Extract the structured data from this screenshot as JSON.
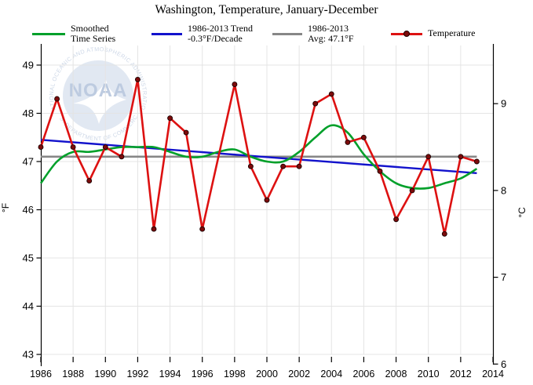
{
  "title": "Washington, Temperature, January-December",
  "legend": [
    {
      "id": "smoothed",
      "label": "Smoothed\nTime Series",
      "color": "#00a02a",
      "marker": false
    },
    {
      "id": "trend",
      "label": "1986-2013 Trend\n-0.3°F/Decade",
      "color": "#1212cc",
      "marker": false
    },
    {
      "id": "avg",
      "label": "1986-2013\nAvg: 47.1°F",
      "color": "#878787",
      "marker": false
    },
    {
      "id": "temperature",
      "label": "Temperature",
      "color": "#dd1111",
      "marker": true
    }
  ],
  "logo": {
    "name": "NOAA",
    "arc_top": "NATIONAL OCEANIC AND ATMOSPHERIC ADMINISTRATION",
    "arc_bottom": "U.S. DEPARTMENT OF COMMERCE"
  },
  "chart_data": {
    "type": "line",
    "title": "Washington, Temperature, January-December",
    "x": [
      1986,
      1987,
      1988,
      1989,
      1990,
      1991,
      1992,
      1993,
      1994,
      1995,
      1996,
      1997,
      1998,
      1999,
      2000,
      2001,
      2002,
      2003,
      2004,
      2005,
      2006,
      2007,
      2008,
      2009,
      2010,
      2011,
      2012,
      2013
    ],
    "series": [
      {
        "name": "Temperature",
        "color": "#dd1111",
        "marker": true,
        "marker_color": "#7c0b0b",
        "values": [
          47.3,
          48.3,
          47.3,
          46.6,
          47.3,
          47.1,
          48.7,
          45.6,
          47.9,
          47.6,
          45.6,
          null,
          48.6,
          46.9,
          46.2,
          46.9,
          46.9,
          48.2,
          48.4,
          47.4,
          47.5,
          46.8,
          45.8,
          46.4,
          47.1,
          45.5,
          47.1,
          47.0
        ]
      },
      {
        "name": "Smoothed Time Series",
        "color": "#00a02a",
        "marker": false,
        "values": [
          46.55,
          47.0,
          47.2,
          47.2,
          47.25,
          47.3,
          47.3,
          47.3,
          47.2,
          47.1,
          47.1,
          47.2,
          47.25,
          47.1,
          47.0,
          47.0,
          47.2,
          47.5,
          47.75,
          47.6,
          47.15,
          46.8,
          46.55,
          46.45,
          46.45,
          46.55,
          46.65,
          46.85
        ]
      },
      {
        "name": "1986-2013 Trend",
        "color": "#1212cc",
        "kind": "trend",
        "start_year": 1986,
        "end_year": 2013,
        "start_value": 47.45,
        "end_value": 46.76,
        "slope_per_decade": -0.3
      },
      {
        "name": "1986-2013 Avg",
        "color": "#878787",
        "kind": "average",
        "start_year": 1986,
        "end_year": 2013,
        "value": 47.1
      }
    ],
    "ylabel_left": "°F",
    "ylabel_right": "°C",
    "y_left_ticks": [
      43,
      44,
      45,
      46,
      47,
      48,
      49
    ],
    "y_right_ticks": [
      6,
      7,
      8,
      9
    ],
    "x_ticks": [
      1986,
      1988,
      1990,
      1992,
      1994,
      1996,
      1998,
      2000,
      2002,
      2004,
      2006,
      2008,
      2010,
      2012,
      2014
    ],
    "xlim": [
      1986,
      2014
    ],
    "ylim_f": [
      42.7,
      49.4
    ],
    "grid": true,
    "legend_position": "top"
  }
}
